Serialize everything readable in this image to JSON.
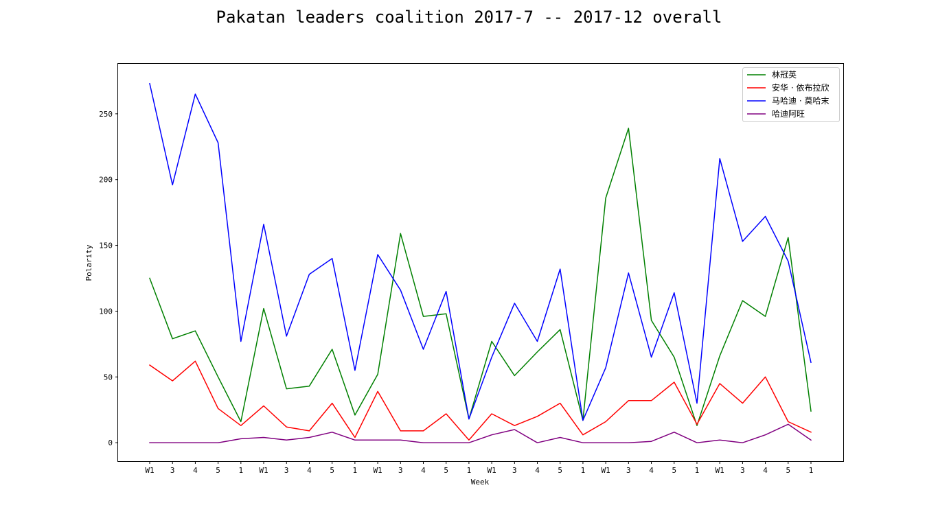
{
  "chart_data": {
    "type": "line",
    "title": "Pakatan leaders coalition 2017-7 -- 2017-12 overall",
    "xlabel": "Week",
    "ylabel": "Polarity",
    "ylim": [
      -14,
      288
    ],
    "yticks": [
      0,
      50,
      100,
      150,
      200,
      250
    ],
    "grid": false,
    "legend_position": "upper right",
    "categories": [
      "W1",
      "3",
      "4",
      "5",
      "1",
      "W1",
      "3",
      "4",
      "5",
      "1",
      "W1",
      "3",
      "4",
      "5",
      "1",
      "W1",
      "3",
      "4",
      "5",
      "1",
      "W1",
      "3",
      "4",
      "5",
      "1",
      "W1",
      "3",
      "4",
      "5",
      "1"
    ],
    "series": [
      {
        "name": "林冠英",
        "color": "#008000",
        "values": [
          125,
          79,
          85,
          50,
          16,
          102,
          41,
          43,
          71,
          21,
          52,
          159,
          96,
          98,
          18,
          77,
          51,
          69,
          86,
          17,
          186,
          239,
          93,
          65,
          13,
          66,
          108,
          96,
          156,
          24
        ]
      },
      {
        "name": "安华 · 依布拉欣",
        "color": "#ff0000",
        "values": [
          59,
          47,
          62,
          26,
          13,
          28,
          12,
          9,
          30,
          4,
          39,
          9,
          9,
          22,
          2,
          22,
          13,
          20,
          30,
          6,
          16,
          32,
          32,
          46,
          14,
          45,
          30,
          50,
          16,
          8
        ]
      },
      {
        "name": "马哈迪 · 莫哈末",
        "color": "#0000ff",
        "values": [
          273,
          196,
          265,
          228,
          77,
          166,
          81,
          128,
          140,
          55,
          143,
          116,
          71,
          115,
          18,
          65,
          106,
          77,
          132,
          17,
          57,
          129,
          65,
          114,
          30,
          216,
          153,
          172,
          138,
          61
        ]
      },
      {
        "name": "哈迪阿旺",
        "color": "#800080",
        "values": [
          0,
          0,
          0,
          0,
          3,
          4,
          2,
          4,
          8,
          2,
          2,
          2,
          0,
          0,
          0,
          6,
          10,
          0,
          4,
          0,
          0,
          0,
          1,
          8,
          0,
          2,
          0,
          6,
          14,
          2
        ]
      }
    ]
  }
}
